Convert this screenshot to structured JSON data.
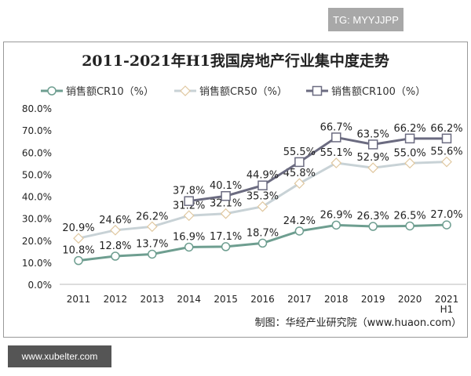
{
  "badge": "TG: MYYJJPP",
  "site": "www.xubelter.com",
  "chart_data": {
    "type": "line",
    "title": "2011-2021年H1我国房地产行业集中度走势",
    "categories": [
      "2011",
      "2012",
      "2013",
      "2014",
      "2015",
      "2016",
      "2017",
      "2018",
      "2019",
      "2020",
      "2021\nH1"
    ],
    "ylim": [
      0,
      80
    ],
    "yticks": [
      "0.0%",
      "10.0%",
      "20.0%",
      "30.0%",
      "40.0%",
      "50.0%",
      "60.0%",
      "70.0%",
      "80.0%"
    ],
    "legend": "top",
    "source": "制图：华经产业研究院（www.huaon.com）",
    "series": [
      {
        "name": "销售额CR10（%）",
        "color": "#6e9e90",
        "marker": "circle",
        "values": [
          10.8,
          12.8,
          13.7,
          16.9,
          17.1,
          18.7,
          24.2,
          26.9,
          26.3,
          26.5,
          27.0
        ]
      },
      {
        "name": "销售额CR50（%）",
        "color": "#c8d2d6",
        "marker": "diamond",
        "values": [
          20.9,
          24.6,
          26.2,
          31.2,
          32.1,
          35.3,
          45.8,
          55.1,
          52.9,
          55.0,
          55.6
        ]
      },
      {
        "name": "销售额CR100（%）",
        "color": "#6b6b80",
        "marker": "square",
        "values": [
          null,
          null,
          null,
          37.8,
          40.1,
          44.9,
          55.5,
          66.7,
          63.5,
          66.2,
          66.2
        ]
      }
    ]
  }
}
